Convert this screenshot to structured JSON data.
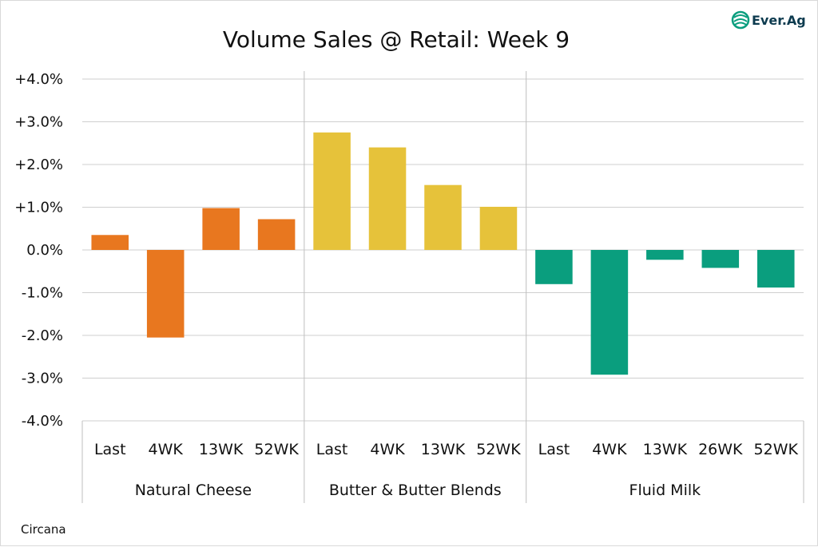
{
  "chart_data": {
    "type": "bar",
    "title": "Volume Sales @ Retail: Week 9",
    "ylim": [
      -4.0,
      4.0
    ],
    "ytick_values": [
      4,
      3,
      2,
      1,
      0,
      -1,
      -2,
      -3,
      -4
    ],
    "ytick_labels": [
      "+4.0%",
      "+3.0%",
      "+2.0%",
      "+1.0%",
      "0.0%",
      "-1.0%",
      "-2.0%",
      "-3.0%",
      "-4.0%"
    ],
    "grid": true,
    "groups": [
      {
        "name": "Natural Cheese",
        "color": "#E8771F",
        "categories": [
          "Last",
          "4WK",
          "13WK",
          "52WK"
        ],
        "values": [
          0.35,
          -2.05,
          0.98,
          0.72
        ]
      },
      {
        "name": "Butter & Butter Blends",
        "color": "#E6C23A",
        "categories": [
          "Last",
          "4WK",
          "13WK",
          "52WK"
        ],
        "values": [
          2.75,
          2.4,
          1.52,
          1.01
        ]
      },
      {
        "name": "Fluid Milk",
        "color": "#0A9E7E",
        "categories": [
          "Last",
          "4WK",
          "13WK",
          "26WK",
          "52WK"
        ],
        "values": [
          -0.8,
          -2.92,
          -0.23,
          -0.42,
          -0.88
        ]
      }
    ]
  },
  "source": "Circana",
  "logo": {
    "text": "Ever.Ag",
    "icon": "ever-ag-logo-icon",
    "color": "#0d3b4f"
  }
}
